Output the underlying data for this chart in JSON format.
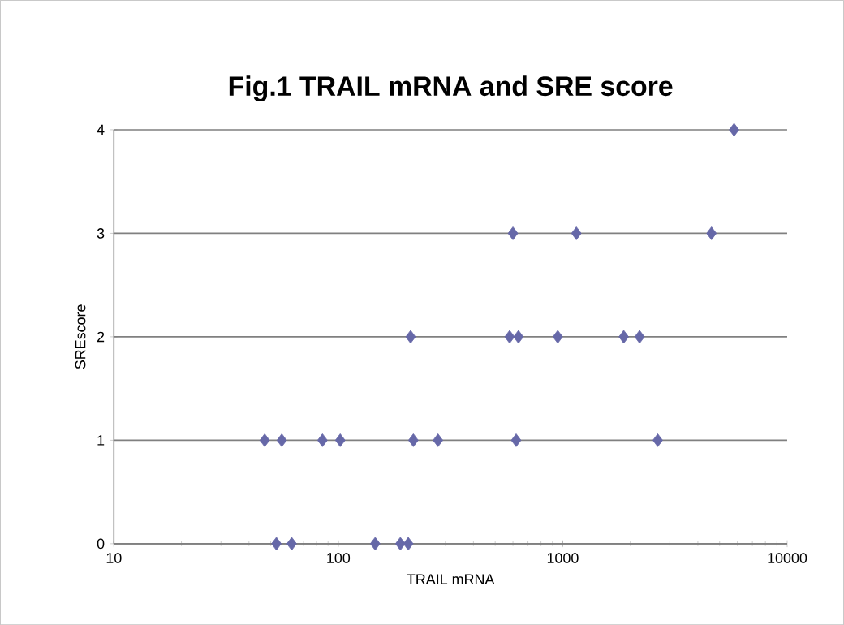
{
  "chart_data": {
    "type": "scatter",
    "title": "Fig.1 TRAIL mRNA and SRE score",
    "xlabel": "TRAIL mRNA",
    "ylabel": "SREscore",
    "log": "x",
    "xlim": [
      10,
      10000
    ],
    "xticks": [
      10,
      100,
      1000,
      10000
    ],
    "ylim": [
      0,
      4
    ],
    "yticks": [
      0,
      1,
      2,
      3,
      4
    ],
    "grid": "y",
    "marker": "diamond",
    "series": [
      {
        "color": "#6668a8",
        "x": [
          5800,
          600,
          1150,
          4600,
          210,
          580,
          635,
          950,
          1870,
          2200,
          47,
          56,
          85,
          102,
          216,
          278,
          620,
          2650,
          53,
          62,
          146,
          189,
          205
        ],
        "values": [
          4,
          3,
          3,
          3,
          2,
          2,
          2,
          2,
          2,
          2,
          1,
          1,
          1,
          1,
          1,
          1,
          1,
          1,
          0,
          0,
          0,
          0,
          0
        ]
      }
    ]
  }
}
